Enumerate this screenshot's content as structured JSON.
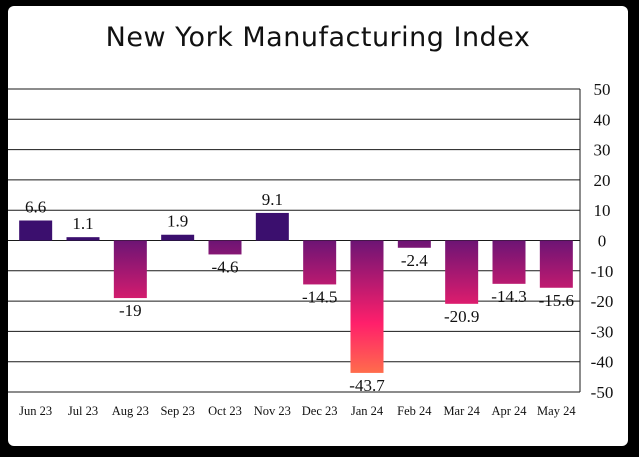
{
  "chart_data": {
    "type": "bar",
    "title": "New York Manufacturing Index",
    "categories": [
      "Jun 23",
      "Jul 23",
      "Aug 23",
      "Sep 23",
      "Oct 23",
      "Nov 23",
      "Dec 23",
      "Jan 24",
      "Feb 24",
      "Mar 24",
      "Apr 24",
      "May 24"
    ],
    "values": [
      6.6,
      1.1,
      -19,
      1.9,
      -4.6,
      9.1,
      -14.5,
      -43.7,
      -2.4,
      -20.9,
      -14.3,
      -15.6
    ],
    "value_labels": [
      "6.6",
      "1.1",
      "-19",
      "1.9",
      "-4.6",
      "9.1",
      "-14.5",
      "-43.7",
      "-2.4",
      "-20.9",
      "-14.3",
      "-15.6"
    ],
    "ylim": [
      -50,
      50
    ],
    "yticks": [
      50,
      40,
      30,
      20,
      10,
      0,
      -10,
      -20,
      -30,
      -40,
      -50
    ],
    "grid": true,
    "y_axis_position": "right",
    "colors": {
      "positive": "#3b0f6e",
      "negative_top": "#6a1475",
      "negative_mid": "#ff1f6b",
      "negative_bottom": "#ff8a40"
    }
  }
}
